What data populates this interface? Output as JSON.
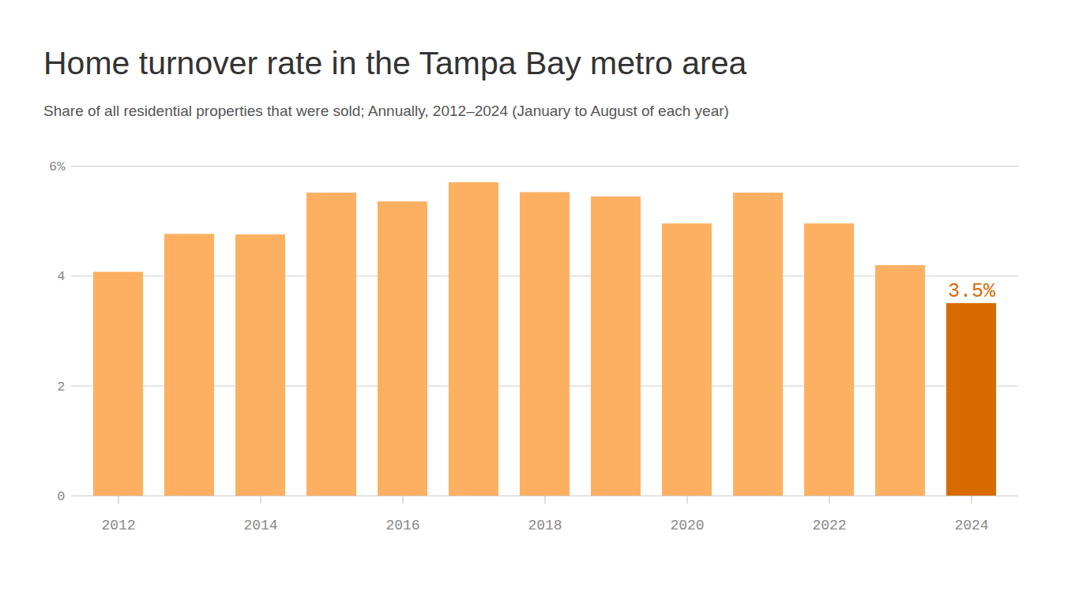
{
  "chart_data": {
    "type": "bar",
    "title": "Home turnover rate in the Tampa Bay metro area",
    "subtitle": "Share of all residential properties that were sold; Annually, 2012–2024 (January to August of each year)",
    "categories": [
      "2012",
      null,
      "2014",
      null,
      "2016",
      null,
      "2018",
      null,
      "2020",
      null,
      "2022",
      null,
      "2024"
    ],
    "values": [
      4.07,
      4.76,
      4.75,
      5.51,
      5.35,
      5.7,
      5.52,
      5.44,
      4.95,
      5.51,
      4.95,
      4.19,
      3.5
    ],
    "colors": [
      "#fdb062",
      "#fdb062",
      "#fdb062",
      "#fdb062",
      "#fdb062",
      "#fdb062",
      "#fdb062",
      "#fdb062",
      "#fdb062",
      "#fdb062",
      "#fdb062",
      "#fdb062",
      "#d96a00"
    ],
    "data_labels": true,
    "value_labels": [
      null,
      null,
      null,
      null,
      null,
      null,
      null,
      null,
      null,
      null,
      null,
      null,
      "3.5%"
    ],
    "ylim": [
      0,
      6
    ],
    "yticks": [
      0,
      2,
      4,
      {
        "value": 6,
        "label": "6%"
      }
    ],
    "grid": true
  }
}
